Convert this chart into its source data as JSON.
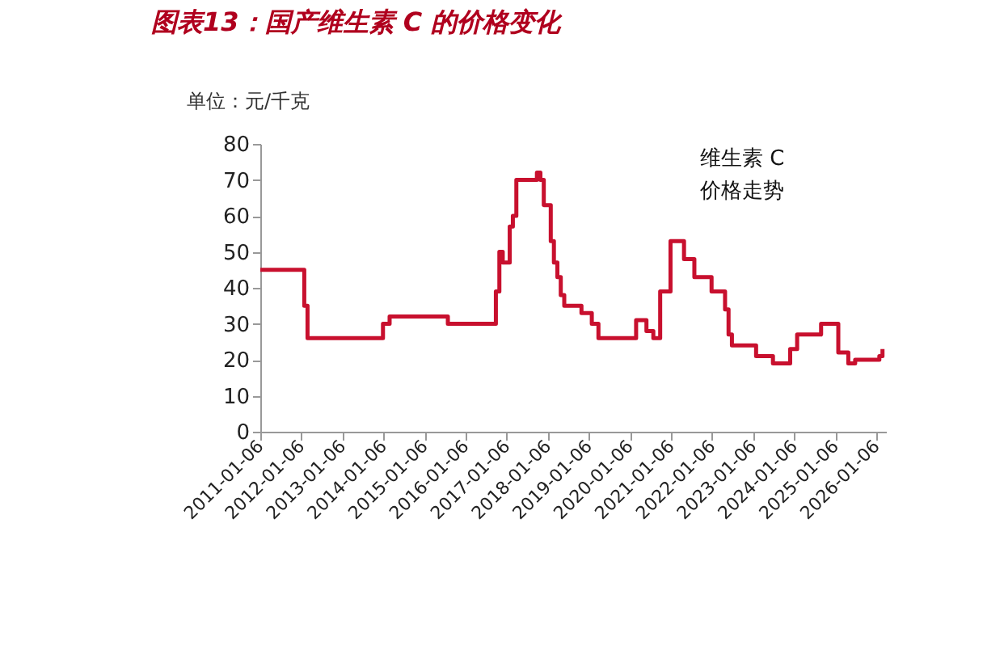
{
  "chart_data": {
    "type": "step",
    "title": "图表13：国产维生素 C 的价格变化",
    "ylabel": "单位：元/千克",
    "annotations": [
      "维生素 C\n价格走势"
    ],
    "x": [
      "2011-01-06",
      "2012-02",
      "2012-03",
      "2014-01",
      "2014-03",
      "2015-08",
      "2016-10",
      "2016-11",
      "2016-12",
      "2017-02",
      "2017-03",
      "2017-04",
      "2017-10",
      "2017-11",
      "2017-12",
      "2018-02",
      "2018-03",
      "2018-04",
      "2018-05",
      "2018-06",
      "2018-11",
      "2019-02",
      "2019-04",
      "2020-03",
      "2020-06",
      "2020-08",
      "2020-10",
      "2021-01",
      "2021-05",
      "2021-08",
      "2022-01",
      "2022-05",
      "2022-06",
      "2022-07",
      "2023-02",
      "2023-07",
      "2023-12",
      "2024-02",
      "2024-09",
      "2025-02",
      "2025-05",
      "2025-07",
      "2026-02",
      "2026-03"
    ],
    "series": [
      {
        "color": "#c8102e",
        "values": [
          45,
          35,
          26,
          30,
          32,
          30,
          39,
          50,
          47,
          57,
          60,
          70,
          72,
          70,
          63,
          53,
          47,
          43,
          38,
          35,
          33,
          30,
          26,
          31,
          28,
          26,
          39,
          53,
          48,
          43,
          39,
          34,
          27,
          24,
          21,
          19,
          23,
          27,
          30,
          22,
          19,
          20,
          21,
          23
        ]
      }
    ],
    "xlim": [
      "2011-01-06",
      "2026-04-01"
    ],
    "xticks": [
      "2011-01-06",
      "2012-01-06",
      "2013-01-06",
      "2014-01-06",
      "2015-01-06",
      "2016-01-06",
      "2017-01-06",
      "2018-01-06",
      "2019-01-06",
      "2020-01-06",
      "2021-01-06",
      "2022-01-06",
      "2023-01-06",
      "2024-01-06",
      "2025-01-06",
      "2026-01-06"
    ],
    "ylim": [
      0,
      80
    ],
    "yticks": [
      0,
      10,
      20,
      30,
      40,
      50,
      60,
      70,
      80
    ],
    "grid": false,
    "line_style": "solid"
  }
}
